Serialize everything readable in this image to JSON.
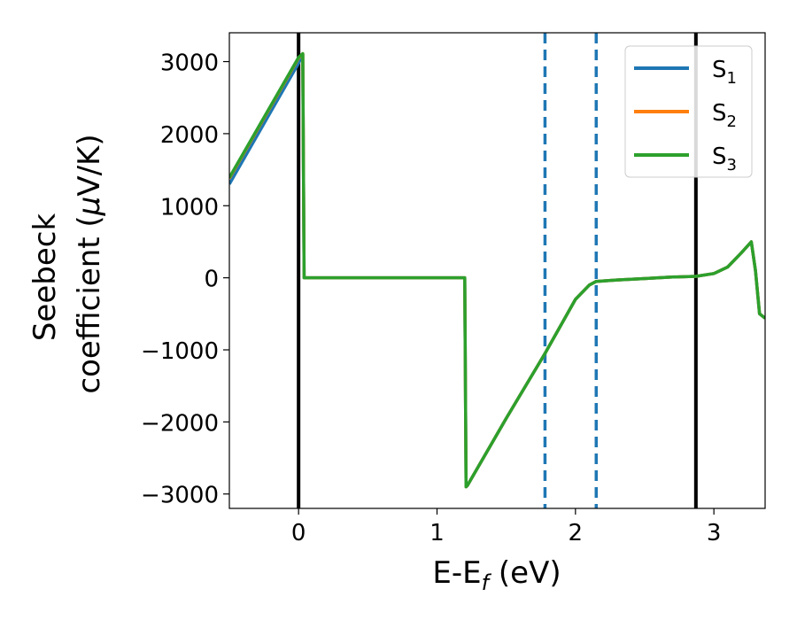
{
  "chart_data": {
    "type": "line",
    "xlabel": "E-E",
    "xlabel_sub": "f",
    "xlabel_unit": " (eV)",
    "ylabel_line1": "Seebeck",
    "ylabel_line2": "coefficient  (",
    "ylabel_mu": "μ",
    "ylabel_unit": "V/K)",
    "xlim": [
      -0.5,
      3.37
    ],
    "ylim": [
      -3200,
      3400
    ],
    "xticks": [
      0,
      1,
      2,
      3
    ],
    "xtick_labels": [
      "0",
      "1",
      "2",
      "3"
    ],
    "yticks": [
      -3000,
      -2000,
      -1000,
      0,
      1000,
      2000,
      3000
    ],
    "ytick_labels": [
      "−3000",
      "−2000",
      "−1000",
      "0",
      "1000",
      "2000",
      "3000"
    ],
    "grid": false,
    "legend_position": "top-right",
    "vlines": [
      {
        "x": 0.0,
        "style": "solid",
        "color": "#000000"
      },
      {
        "x": 1.78,
        "style": "dashed",
        "color": "#1f77b4"
      },
      {
        "x": 2.15,
        "style": "dashed",
        "color": "#1f77b4"
      },
      {
        "x": 2.87,
        "style": "solid",
        "color": "#000000"
      }
    ],
    "series": [
      {
        "name": "S",
        "sub": "1",
        "color": "#1f77b4",
        "x": [
          -0.5,
          0.0,
          0.03,
          0.04,
          1.2,
          1.21,
          1.22,
          1.5,
          1.78,
          2.0,
          2.1,
          2.15,
          2.3,
          2.5,
          2.7,
          2.87,
          3.0,
          3.1,
          3.2,
          3.27,
          3.3,
          3.33,
          3.37
        ],
        "y": [
          1300,
          2980,
          3100,
          0,
          0,
          -2900,
          -2880,
          -1950,
          -1050,
          -300,
          -100,
          -50,
          -30,
          -10,
          10,
          20,
          60,
          150,
          350,
          500,
          100,
          -500,
          -560
        ]
      },
      {
        "name": "S",
        "sub": "2",
        "color": "#ff7f0e",
        "x": [
          -0.5,
          0.0,
          0.03,
          0.04,
          1.2,
          1.21,
          1.22,
          1.5,
          1.78,
          2.0,
          2.1,
          2.15,
          2.3,
          2.5,
          2.7,
          2.87,
          3.0,
          3.1,
          3.2,
          3.27,
          3.3,
          3.33,
          3.37
        ],
        "y": [
          1380,
          3050,
          3110,
          0,
          0,
          -2900,
          -2880,
          -1950,
          -1050,
          -300,
          -100,
          -50,
          -30,
          -10,
          10,
          20,
          60,
          150,
          350,
          500,
          100,
          -500,
          -560
        ]
      },
      {
        "name": "S",
        "sub": "3",
        "color": "#2ca02c",
        "x": [
          -0.5,
          0.0,
          0.03,
          0.04,
          1.2,
          1.21,
          1.22,
          1.5,
          1.78,
          2.0,
          2.1,
          2.15,
          2.3,
          2.5,
          2.7,
          2.87,
          3.0,
          3.1,
          3.2,
          3.27,
          3.3,
          3.33,
          3.37
        ],
        "y": [
          1390,
          3060,
          3110,
          0,
          0,
          -2900,
          -2880,
          -1950,
          -1050,
          -300,
          -100,
          -50,
          -30,
          -10,
          10,
          20,
          60,
          150,
          350,
          500,
          100,
          -500,
          -560
        ]
      }
    ]
  }
}
